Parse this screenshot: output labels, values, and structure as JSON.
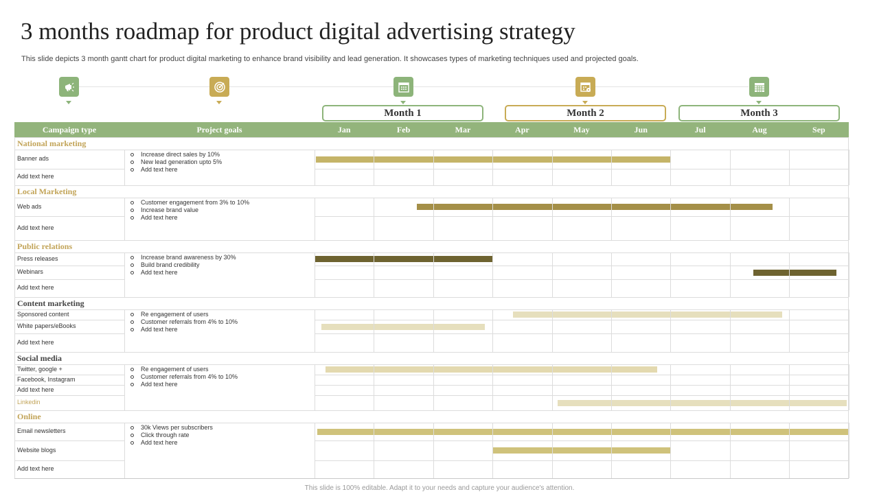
{
  "title": "3 months roadmap for product digital advertising strategy",
  "subtitle": "This slide depicts 3 month gantt chart for product digital marketing to enhance brand visibility and lead generation. It showcases types of marketing techniques used and projected goals.",
  "footer": "This slide is 100% editable. Adapt it to your needs and capture your audience's attention.",
  "icons": [
    {
      "name": "megaphone-icon",
      "color": "#8db47a"
    },
    {
      "name": "target-icon",
      "color": "#c8ab55"
    },
    {
      "name": "calendar-icon",
      "color": "#8db47a"
    },
    {
      "name": "calendar-settings-icon",
      "color": "#c8ab55"
    },
    {
      "name": "calendar-grid-icon",
      "color": "#8db47a"
    }
  ],
  "month_boxes": [
    {
      "label": "Month 1",
      "color": "#8db47a"
    },
    {
      "label": "Month 2",
      "color": "#c8ab55"
    },
    {
      "label": "Month 3",
      "color": "#8db47a"
    }
  ],
  "header": {
    "campaign_type": "Campaign  type",
    "project_goals": "Project goals"
  },
  "colors": {
    "header_bg": "#93b47c",
    "category_gold": "#c2a458",
    "category_dark": "#444444",
    "grid": "#dcdcdc"
  },
  "chart_data": {
    "type": "gantt",
    "months": [
      "Jan",
      "Feb",
      "Mar",
      "Apr",
      "May",
      "Jun",
      "Jul",
      "Aug",
      "Sep"
    ],
    "categories": [
      {
        "name": "National marketing",
        "style": "gold",
        "goals": [
          "Increase direct sales by 10%",
          "New lead generation upto 5%",
          "Add text here"
        ],
        "items": [
          {
            "label": "Banner ads",
            "bar": {
              "start": 0.02,
              "end": 6.0,
              "color": "#c5b468"
            }
          },
          {
            "label": "Add text here"
          }
        ]
      },
      {
        "name": "Local Marketing",
        "style": "gold",
        "goals": [
          "Customer engagement  from 3% to 10%",
          "Increase brand  value",
          "Add text here"
        ],
        "items": [
          {
            "label": "Web ads",
            "bar": {
              "start": 1.73,
              "end": 7.72,
              "color": "#a48f48"
            }
          },
          {
            "label": "Add text here"
          }
        ]
      },
      {
        "name": "Public relations",
        "style": "gold",
        "goals": [
          "Increase brand awareness  by 30%",
          "Build brand  credibility",
          "Add text here"
        ],
        "items": [
          {
            "label": "Press releases",
            "bar": {
              "start": 0.0,
              "end": 3.0,
              "color": "#6e6330"
            }
          },
          {
            "label": "Webinars",
            "bar": {
              "start": 7.4,
              "end": 8.8,
              "color": "#6e6330"
            }
          },
          {
            "label": "Add text here"
          }
        ]
      },
      {
        "name": "Content marketing",
        "style": "dark",
        "goals": [
          "Re engagement of users",
          "Customer referrals from 4% to 10%",
          "Add text here"
        ],
        "items": [
          {
            "label": "Sponsored content",
            "bar": {
              "start": 3.35,
              "end": 7.88,
              "color": "#e6dfbd"
            }
          },
          {
            "label": "White papers/eBooks",
            "bar": {
              "start": 0.12,
              "end": 2.87,
              "color": "#e6dfbd"
            }
          },
          {
            "label": "Add text here"
          }
        ]
      },
      {
        "name": "Social media",
        "style": "dark",
        "goals": [
          "Re engagement of users",
          "Customer referrals from 4% to 10%",
          "Add text here"
        ],
        "items": [
          {
            "label": "Twitter, google +",
            "bar": {
              "start": 0.19,
              "end": 5.78,
              "color": "#e3d9af"
            }
          },
          {
            "label": "Facebook, Instagram"
          },
          {
            "label": "Add text here"
          },
          {
            "label": "Linkedin",
            "highlight": true,
            "bar": {
              "start": 4.1,
              "end": 8.97,
              "color": "#e6dfbd"
            }
          }
        ]
      },
      {
        "name": "Online",
        "style": "gold",
        "goals": [
          "30k Views per subscribers",
          "Click through rate",
          "Add text here"
        ],
        "items": [
          {
            "label": "Email newsletters",
            "bar": {
              "start": 0.05,
              "end": 9.0,
              "color": "#cfc27b"
            }
          },
          {
            "label": "Website blogs",
            "bar": {
              "start": 3.0,
              "end": 6.0,
              "color": "#cfc27b"
            }
          },
          {
            "label": "Add text here"
          }
        ]
      }
    ]
  }
}
